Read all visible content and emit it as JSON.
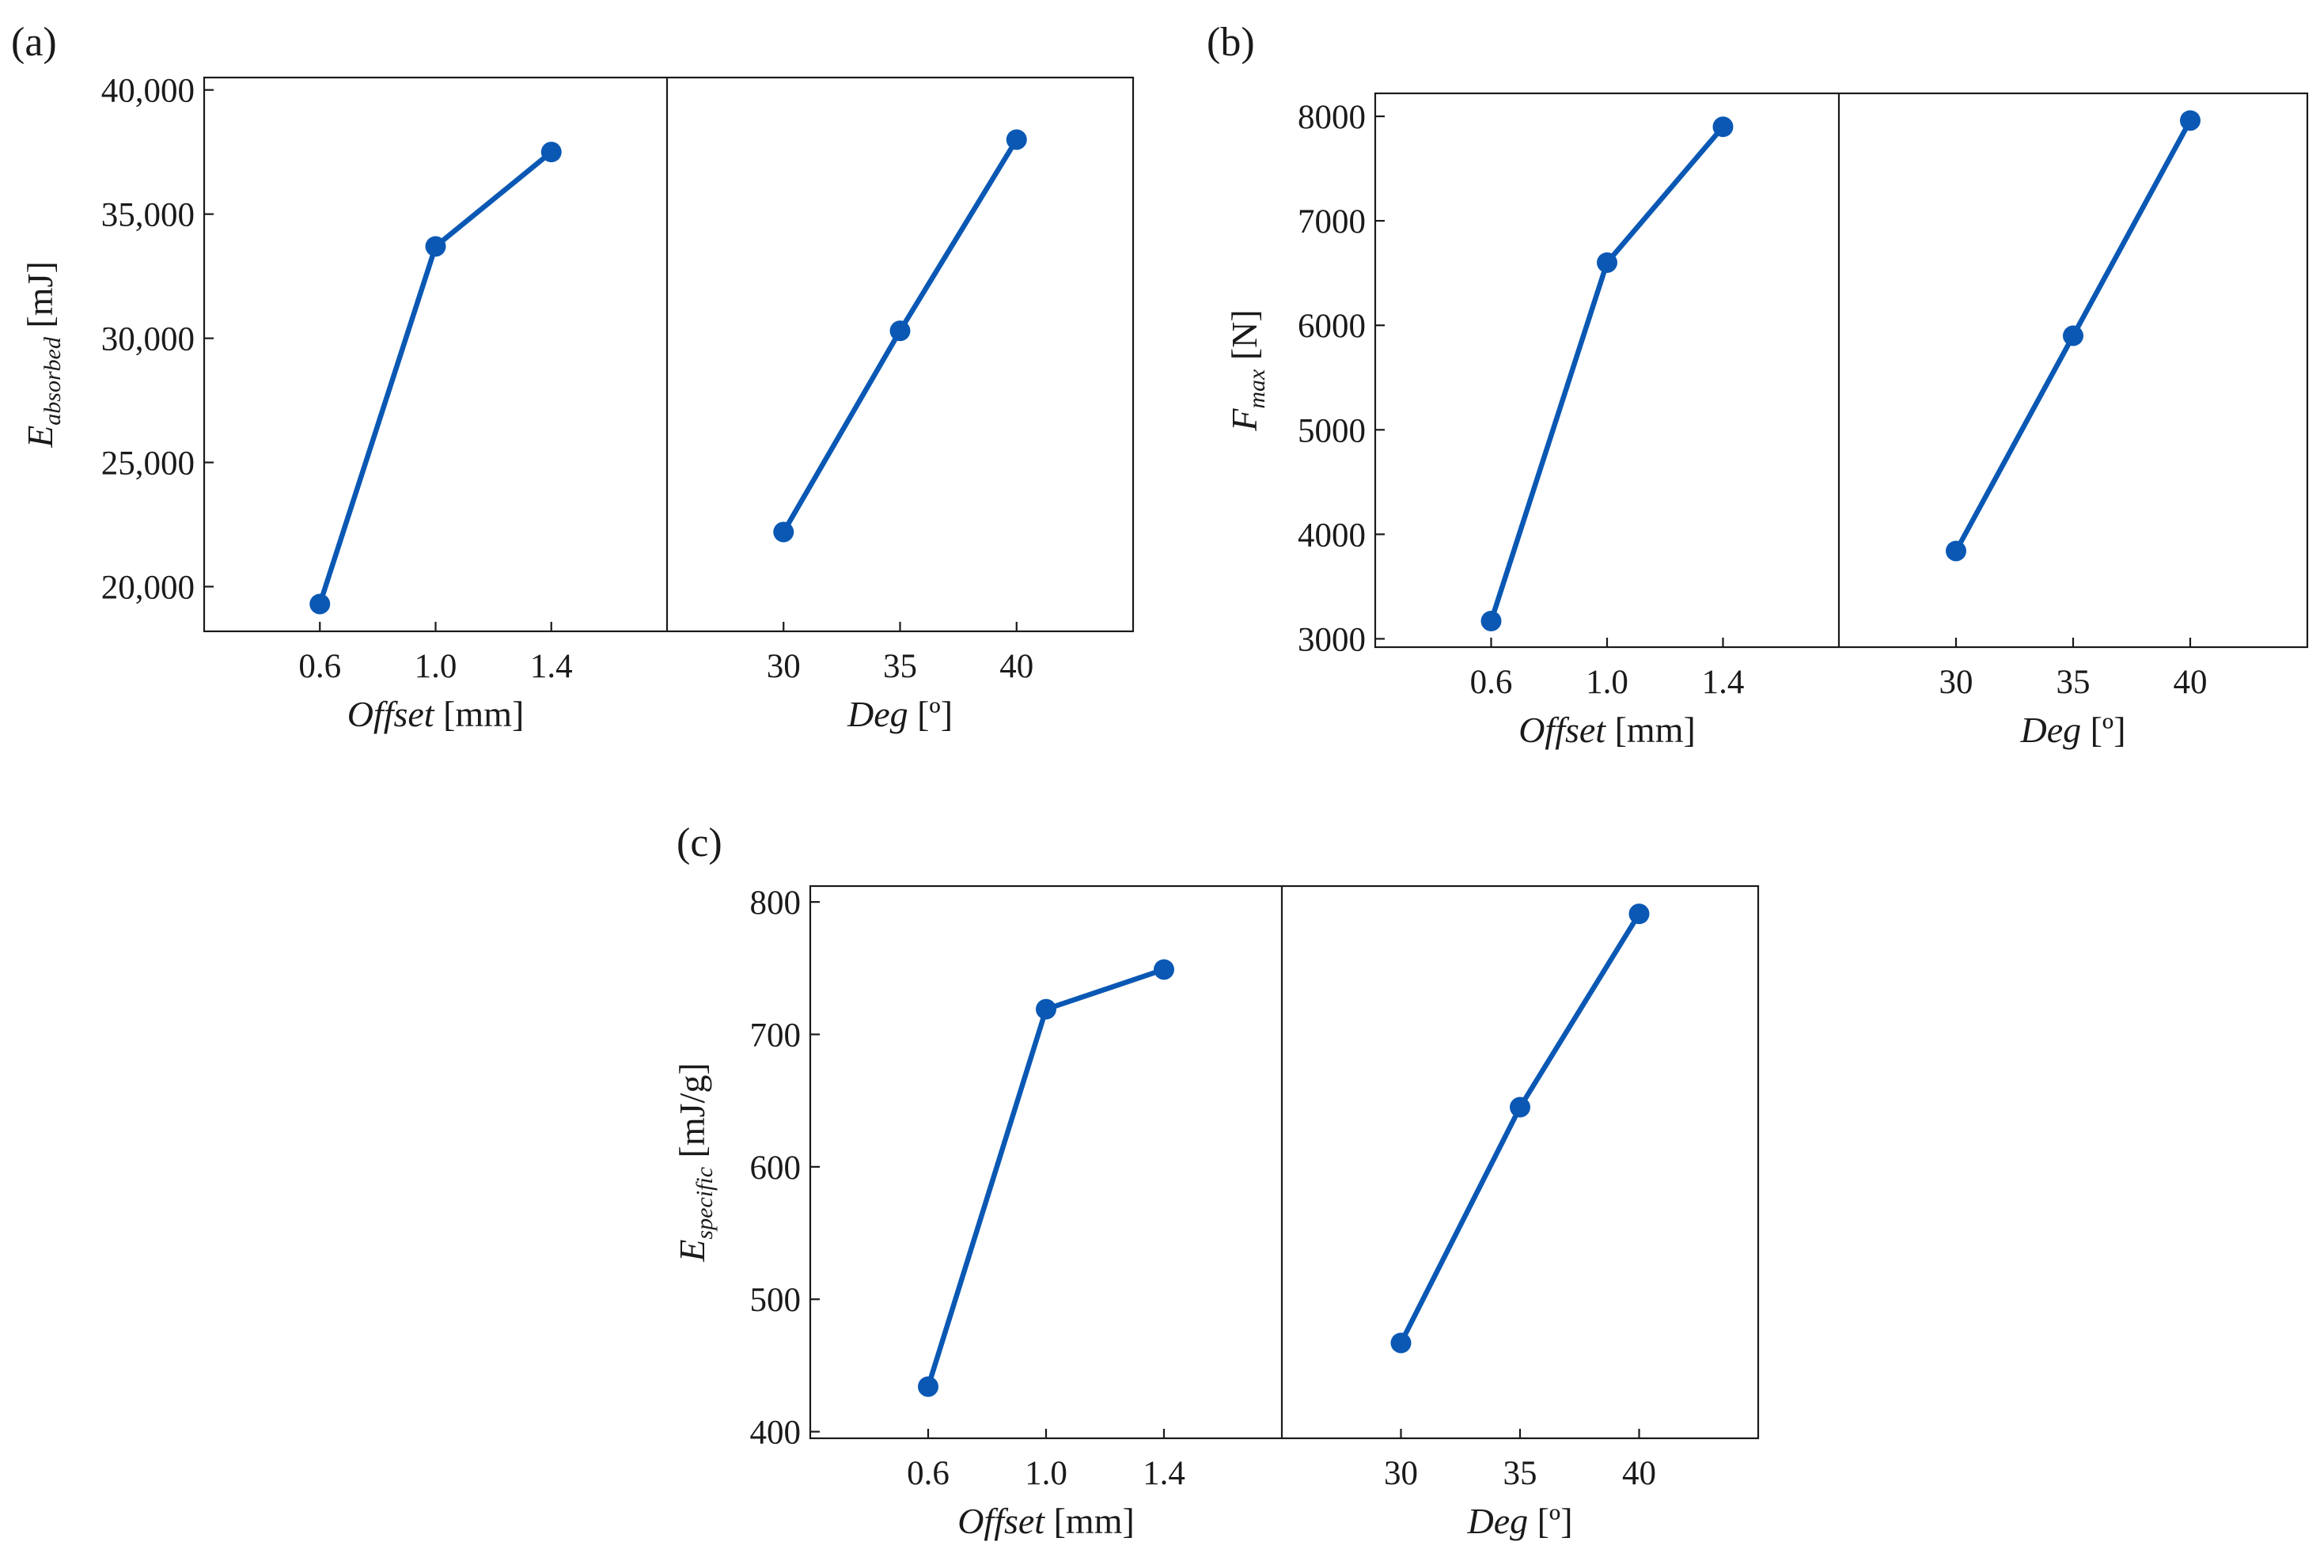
{
  "colors": {
    "series": "#0a58b4",
    "axes": "#1a1a1a"
  },
  "chart_data": [
    {
      "type": "line",
      "panel_label": "(a)",
      "ylabel": {
        "symbol": "E",
        "subscript": "absorbed",
        "unit": " [mJ]"
      },
      "ylim": [
        18200,
        40500
      ],
      "yticks": [
        20000,
        25000,
        30000,
        35000,
        40000
      ],
      "ytick_labels": [
        "20,000",
        "25,000",
        "30,000",
        "35,000",
        "40,000"
      ],
      "subplots": [
        {
          "xlabel": {
            "var": "Offset",
            "unit": " [mm]"
          },
          "categories": [
            "0.6",
            "1.0",
            "1.4"
          ],
          "values": [
            19300,
            33700,
            37500
          ]
        },
        {
          "xlabel": {
            "var": "Deg",
            "unit": " [º]"
          },
          "categories": [
            "30",
            "35",
            "40"
          ],
          "values": [
            22200,
            30300,
            38000
          ]
        }
      ]
    },
    {
      "type": "line",
      "panel_label": "(b)",
      "ylabel": {
        "symbol": "F",
        "subscript": "max",
        "unit": " [N]"
      },
      "ylim": [
        2920,
        8220
      ],
      "yticks": [
        3000,
        4000,
        5000,
        6000,
        7000,
        8000
      ],
      "ytick_labels": [
        "3000",
        "4000",
        "5000",
        "6000",
        "7000",
        "8000"
      ],
      "subplots": [
        {
          "xlabel": {
            "var": "Offset",
            "unit": " [mm]"
          },
          "categories": [
            "0.6",
            "1.0",
            "1.4"
          ],
          "values": [
            3170,
            6600,
            7900
          ]
        },
        {
          "xlabel": {
            "var": "Deg",
            "unit": " [º]"
          },
          "categories": [
            "30",
            "35",
            "40"
          ],
          "values": [
            3840,
            5900,
            7960
          ]
        }
      ]
    },
    {
      "type": "line",
      "panel_label": "(c)",
      "ylabel": {
        "symbol": "E",
        "subscript": "specific",
        "unit": " [mJ/g]"
      },
      "ylim": [
        395,
        812
      ],
      "yticks": [
        400,
        500,
        600,
        700,
        800
      ],
      "ytick_labels": [
        "400",
        "500",
        "600",
        "700",
        "800"
      ],
      "subplots": [
        {
          "xlabel": {
            "var": "Offset",
            "unit": " [mm]"
          },
          "categories": [
            "0.6",
            "1.0",
            "1.4"
          ],
          "values": [
            434,
            719,
            749
          ]
        },
        {
          "xlabel": {
            "var": "Deg",
            "unit": " [º]"
          },
          "categories": [
            "30",
            "35",
            "40"
          ],
          "values": [
            467,
            645,
            791
          ]
        }
      ]
    }
  ]
}
